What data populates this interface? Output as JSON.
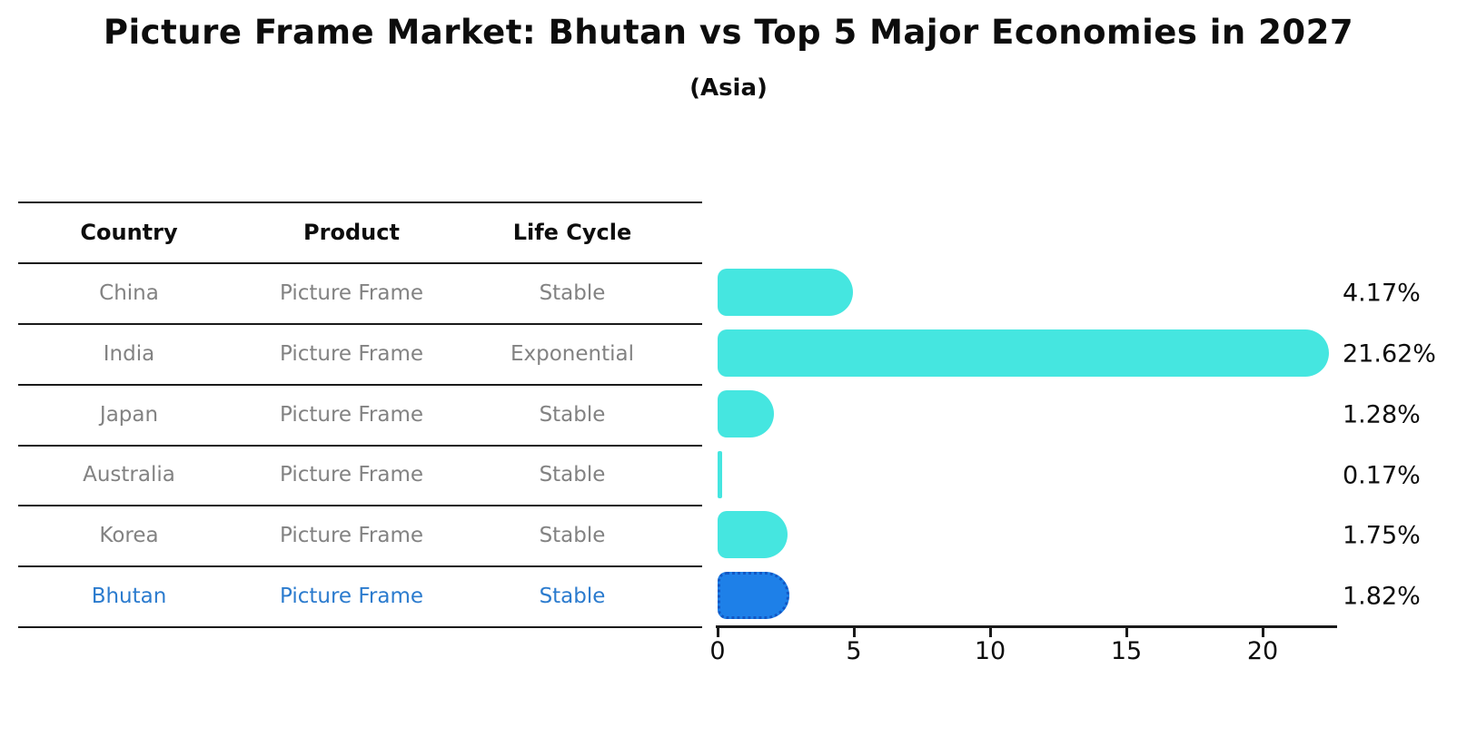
{
  "title": "Picture Frame Market: Bhutan vs Top 5 Major Economies in 2027",
  "subtitle": "(Asia)",
  "table": {
    "headers": [
      "Country",
      "Product",
      "Life Cycle"
    ],
    "rows": [
      {
        "country": "China",
        "product": "Picture Frame",
        "life_cycle": "Stable",
        "highlight": false
      },
      {
        "country": "India",
        "product": "Picture Frame",
        "life_cycle": "Exponential",
        "highlight": false
      },
      {
        "country": "Japan",
        "product": "Picture Frame",
        "life_cycle": "Stable",
        "highlight": false
      },
      {
        "country": "Australia",
        "product": "Picture Frame",
        "life_cycle": "Stable",
        "highlight": false
      },
      {
        "country": "Korea",
        "product": "Picture Frame",
        "life_cycle": "Stable",
        "highlight": false
      },
      {
        "country": "Bhutan",
        "product": "Picture Frame",
        "life_cycle": "Stable",
        "highlight": true
      }
    ]
  },
  "chart_data": {
    "type": "bar",
    "orientation": "horizontal",
    "title": "Picture Frame Market: Bhutan vs Top 5 Major Economies in 2027",
    "subtitle": "(Asia)",
    "categories": [
      "China",
      "India",
      "Japan",
      "Australia",
      "Korea",
      "Bhutan"
    ],
    "values": [
      4.17,
      21.62,
      1.28,
      0.17,
      1.75,
      1.82
    ],
    "value_labels": [
      "4.17%",
      "21.62%",
      "1.28%",
      "0.17%",
      "1.75%",
      "1.82%"
    ],
    "x_ticks": [
      0,
      5,
      10,
      15,
      20
    ],
    "xlim": [
      0,
      22.7
    ],
    "grid": false,
    "legend": "none",
    "highlight_index": 5
  },
  "colors": {
    "bar": "#45E6E0",
    "highlight_bar": "#1E80E8",
    "highlight_border": "#1257C4",
    "highlight_text": "#2B7BCE",
    "row_text": "#828282",
    "header_text": "#0d0d0d",
    "line": "#1a1a1a"
  }
}
